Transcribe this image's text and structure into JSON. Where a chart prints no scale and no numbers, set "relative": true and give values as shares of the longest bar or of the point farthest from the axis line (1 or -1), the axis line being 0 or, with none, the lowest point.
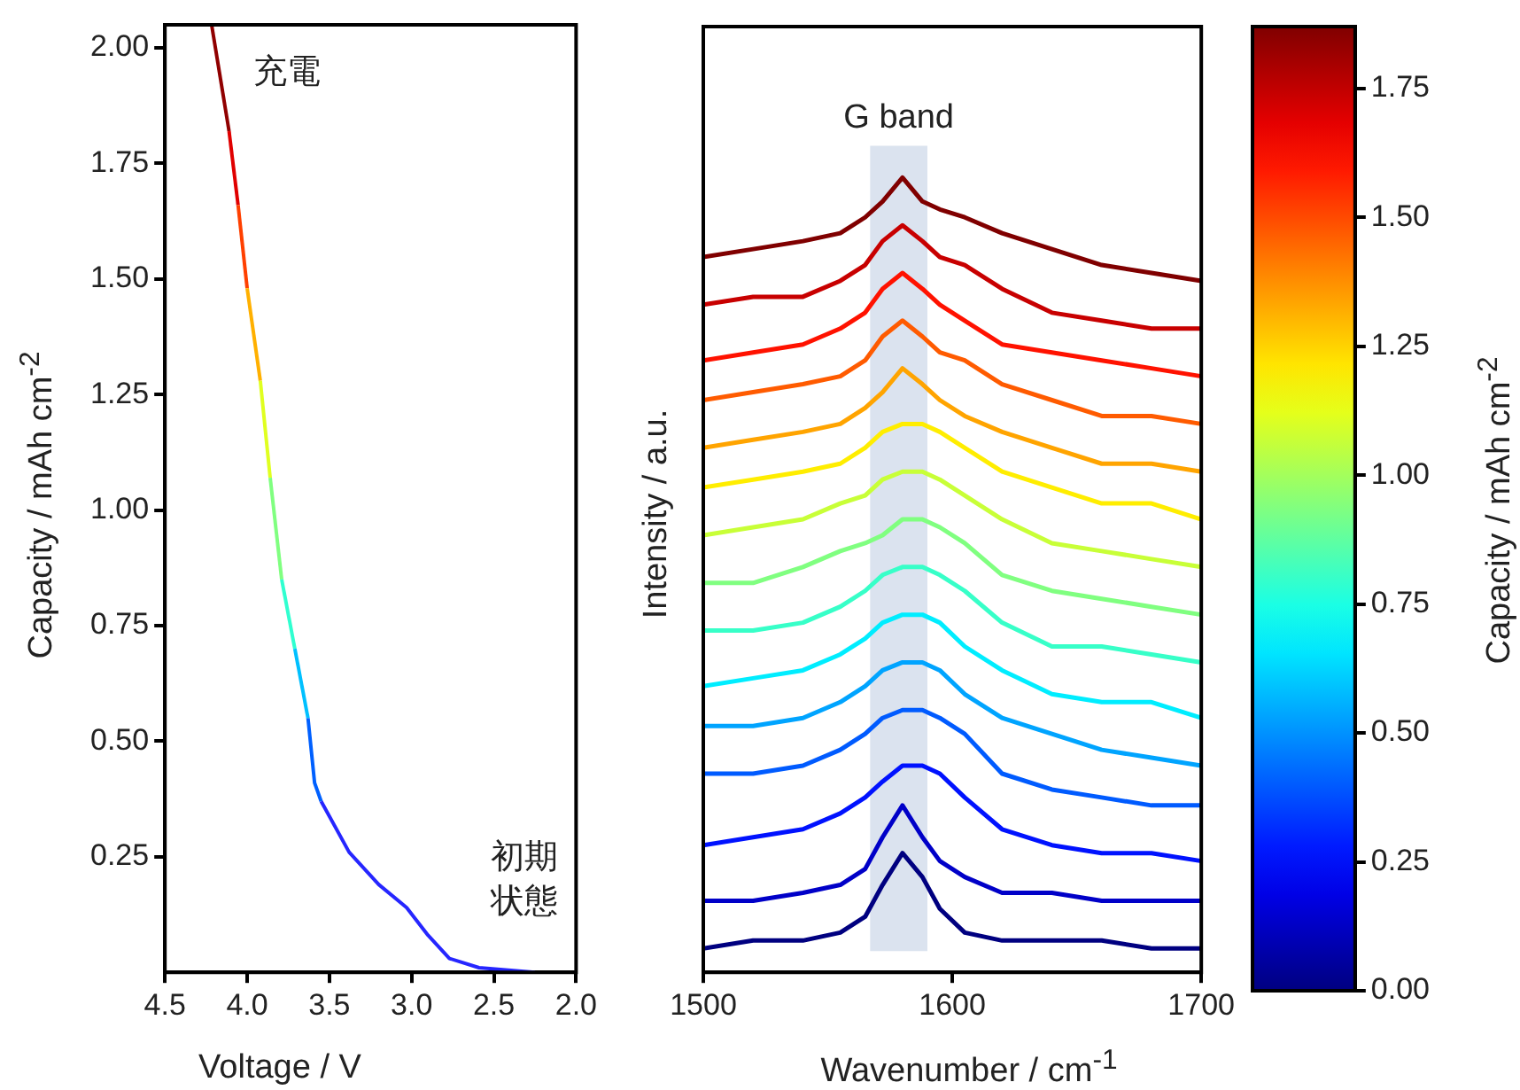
{
  "chart_data": [
    {
      "type": "line",
      "xlabel": "Voltage / V",
      "ylabel": "Capacity / mAh cm$^{-2}$",
      "xlim": [
        4.5,
        2.0
      ],
      "xticks": [
        {
          "value": 4.5,
          "label": "4.5"
        },
        {
          "value": 4.0,
          "label": "4.0"
        },
        {
          "value": 3.5,
          "label": "3.5"
        },
        {
          "value": 3.0,
          "label": "3.0"
        },
        {
          "value": 2.5,
          "label": "2.5"
        },
        {
          "value": 2.0,
          "label": "2.0"
        }
      ],
      "ylim": [
        0,
        2.05
      ],
      "yticks": [
        {
          "value": 0.25,
          "label": "0.25"
        },
        {
          "value": 0.5,
          "label": "0.50"
        },
        {
          "value": 0.75,
          "label": "0.75"
        },
        {
          "value": 1.0,
          "label": "1.00"
        },
        {
          "value": 1.25,
          "label": "1.25"
        },
        {
          "value": 1.5,
          "label": "1.50"
        },
        {
          "value": 1.75,
          "label": "1.75"
        },
        {
          "value": 2.0,
          "label": "2.00"
        }
      ],
      "annotations": [
        "充電",
        "初期状態"
      ],
      "series": [
        {
          "color": "#2626ff",
          "x": [
            3.55,
            3.38,
            3.2,
            3.03,
            2.9,
            2.77,
            2.59,
            2.25
          ],
          "values": [
            0.37,
            0.26,
            0.19,
            0.14,
            0.08,
            0.03,
            0.01,
            0.0
          ]
        },
        {
          "color": "#0060ff",
          "x": [
            3.63,
            3.59,
            3.55
          ],
          "values": [
            0.55,
            0.41,
            0.37
          ]
        },
        {
          "color": "#00c0ff",
          "x": [
            3.71,
            3.63
          ],
          "values": [
            0.7,
            0.55
          ]
        },
        {
          "color": "#30ffd0",
          "x": [
            3.79,
            3.71
          ],
          "values": [
            0.85,
            0.7
          ]
        },
        {
          "color": "#80ff80",
          "x": [
            3.86,
            3.79
          ],
          "values": [
            1.07,
            0.85
          ]
        },
        {
          "color": "#e0ff20",
          "x": [
            3.92,
            3.86
          ],
          "values": [
            1.28,
            1.07
          ]
        },
        {
          "color": "#ffb000",
          "x": [
            4.0,
            3.92
          ],
          "values": [
            1.48,
            1.28
          ]
        },
        {
          "color": "#ff4000",
          "x": [
            4.055,
            4.0
          ],
          "values": [
            1.66,
            1.48
          ]
        },
        {
          "color": "#e00000",
          "x": [
            4.11,
            4.055
          ],
          "values": [
            1.82,
            1.66
          ]
        },
        {
          "color": "#900000",
          "x": [
            4.216,
            4.11
          ],
          "values": [
            2.05,
            1.82
          ]
        }
      ]
    },
    {
      "type": "line",
      "relative": true,
      "xlabel": "Wavenumber / cm$^{-1}$",
      "ylabel": "Intensity / a.u.",
      "clabel": "Capacity / mAh cm$^{-2}$",
      "xlim": [
        1500,
        1700
      ],
      "xticks": [
        1500,
        1600,
        1700
      ],
      "clim": [
        0,
        1.87
      ],
      "cticks": [
        {
          "value": 0,
          "label": "0.00"
        },
        {
          "value": 0.25,
          "label": "0.25"
        },
        {
          "value": 0.5,
          "label": "0.50"
        },
        {
          "value": 0.75,
          "label": "0.75"
        },
        {
          "value": 1.0,
          "label": "1.00"
        },
        {
          "value": 1.25,
          "label": "1.25"
        },
        {
          "value": 1.5,
          "label": "1.50"
        },
        {
          "value": 1.75,
          "label": "1.75"
        }
      ],
      "bands": [
        {
          "axis": "x",
          "from": 1567,
          "to": 1590,
          "label": "G band",
          "color": "#dbe3ef"
        }
      ],
      "x": [
        1500,
        1520,
        1540,
        1555,
        1565,
        1572,
        1580,
        1588,
        1595,
        1605,
        1620,
        1640,
        1660,
        1680,
        1700
      ],
      "series": [
        {
          "color": "#000080",
          "values": [
            0.03,
            0.04,
            0.04,
            0.05,
            0.07,
            0.11,
            0.15,
            0.12,
            0.08,
            0.05,
            0.04,
            0.04,
            0.04,
            0.03,
            0.03
          ]
        },
        {
          "color": "#0000c8",
          "values": [
            0.09,
            0.09,
            0.1,
            0.11,
            0.13,
            0.17,
            0.21,
            0.17,
            0.14,
            0.12,
            0.1,
            0.1,
            0.09,
            0.09,
            0.09
          ]
        },
        {
          "color": "#0012ff",
          "values": [
            0.16,
            0.17,
            0.18,
            0.2,
            0.22,
            0.24,
            0.26,
            0.26,
            0.25,
            0.22,
            0.18,
            0.16,
            0.15,
            0.15,
            0.14
          ]
        },
        {
          "color": "#005bff",
          "values": [
            0.25,
            0.25,
            0.26,
            0.28,
            0.3,
            0.32,
            0.33,
            0.33,
            0.32,
            0.3,
            0.25,
            0.23,
            0.22,
            0.21,
            0.21
          ]
        },
        {
          "color": "#00a4ff",
          "values": [
            0.31,
            0.31,
            0.32,
            0.34,
            0.36,
            0.38,
            0.39,
            0.39,
            0.38,
            0.35,
            0.32,
            0.3,
            0.28,
            0.27,
            0.26
          ]
        },
        {
          "color": "#00edff",
          "values": [
            0.36,
            0.37,
            0.38,
            0.4,
            0.42,
            0.44,
            0.45,
            0.45,
            0.44,
            0.41,
            0.38,
            0.35,
            0.34,
            0.34,
            0.32
          ]
        },
        {
          "color": "#37ffc8",
          "values": [
            0.43,
            0.43,
            0.44,
            0.46,
            0.48,
            0.5,
            0.51,
            0.51,
            0.5,
            0.48,
            0.44,
            0.41,
            0.41,
            0.4,
            0.39
          ]
        },
        {
          "color": "#80ff80",
          "values": [
            0.49,
            0.49,
            0.51,
            0.53,
            0.54,
            0.55,
            0.57,
            0.57,
            0.56,
            0.54,
            0.5,
            0.48,
            0.47,
            0.46,
            0.45
          ]
        },
        {
          "color": "#c8ff37",
          "values": [
            0.55,
            0.56,
            0.57,
            0.59,
            0.6,
            0.62,
            0.63,
            0.63,
            0.62,
            0.6,
            0.57,
            0.54,
            0.53,
            0.52,
            0.51
          ]
        },
        {
          "color": "#ffed00",
          "values": [
            0.61,
            0.62,
            0.63,
            0.64,
            0.66,
            0.68,
            0.69,
            0.69,
            0.68,
            0.66,
            0.63,
            0.61,
            0.59,
            0.59,
            0.57
          ]
        },
        {
          "color": "#ffa400",
          "values": [
            0.66,
            0.67,
            0.68,
            0.69,
            0.71,
            0.73,
            0.76,
            0.74,
            0.72,
            0.7,
            0.68,
            0.66,
            0.64,
            0.64,
            0.63
          ]
        },
        {
          "color": "#ff5b00",
          "values": [
            0.72,
            0.73,
            0.74,
            0.75,
            0.77,
            0.8,
            0.82,
            0.8,
            0.78,
            0.77,
            0.74,
            0.72,
            0.7,
            0.7,
            0.69
          ]
        },
        {
          "color": "#ff1200",
          "values": [
            0.77,
            0.78,
            0.79,
            0.81,
            0.83,
            0.86,
            0.88,
            0.86,
            0.84,
            0.82,
            0.79,
            0.78,
            0.77,
            0.76,
            0.75
          ]
        },
        {
          "color": "#c80000",
          "values": [
            0.84,
            0.85,
            0.85,
            0.87,
            0.89,
            0.92,
            0.94,
            0.92,
            0.9,
            0.89,
            0.86,
            0.83,
            0.82,
            0.81,
            0.81
          ]
        },
        {
          "color": "#800000",
          "values": [
            0.9,
            0.91,
            0.92,
            0.93,
            0.95,
            0.97,
            1.0,
            0.97,
            0.96,
            0.95,
            0.93,
            0.91,
            0.89,
            0.88,
            0.87
          ]
        }
      ]
    }
  ]
}
